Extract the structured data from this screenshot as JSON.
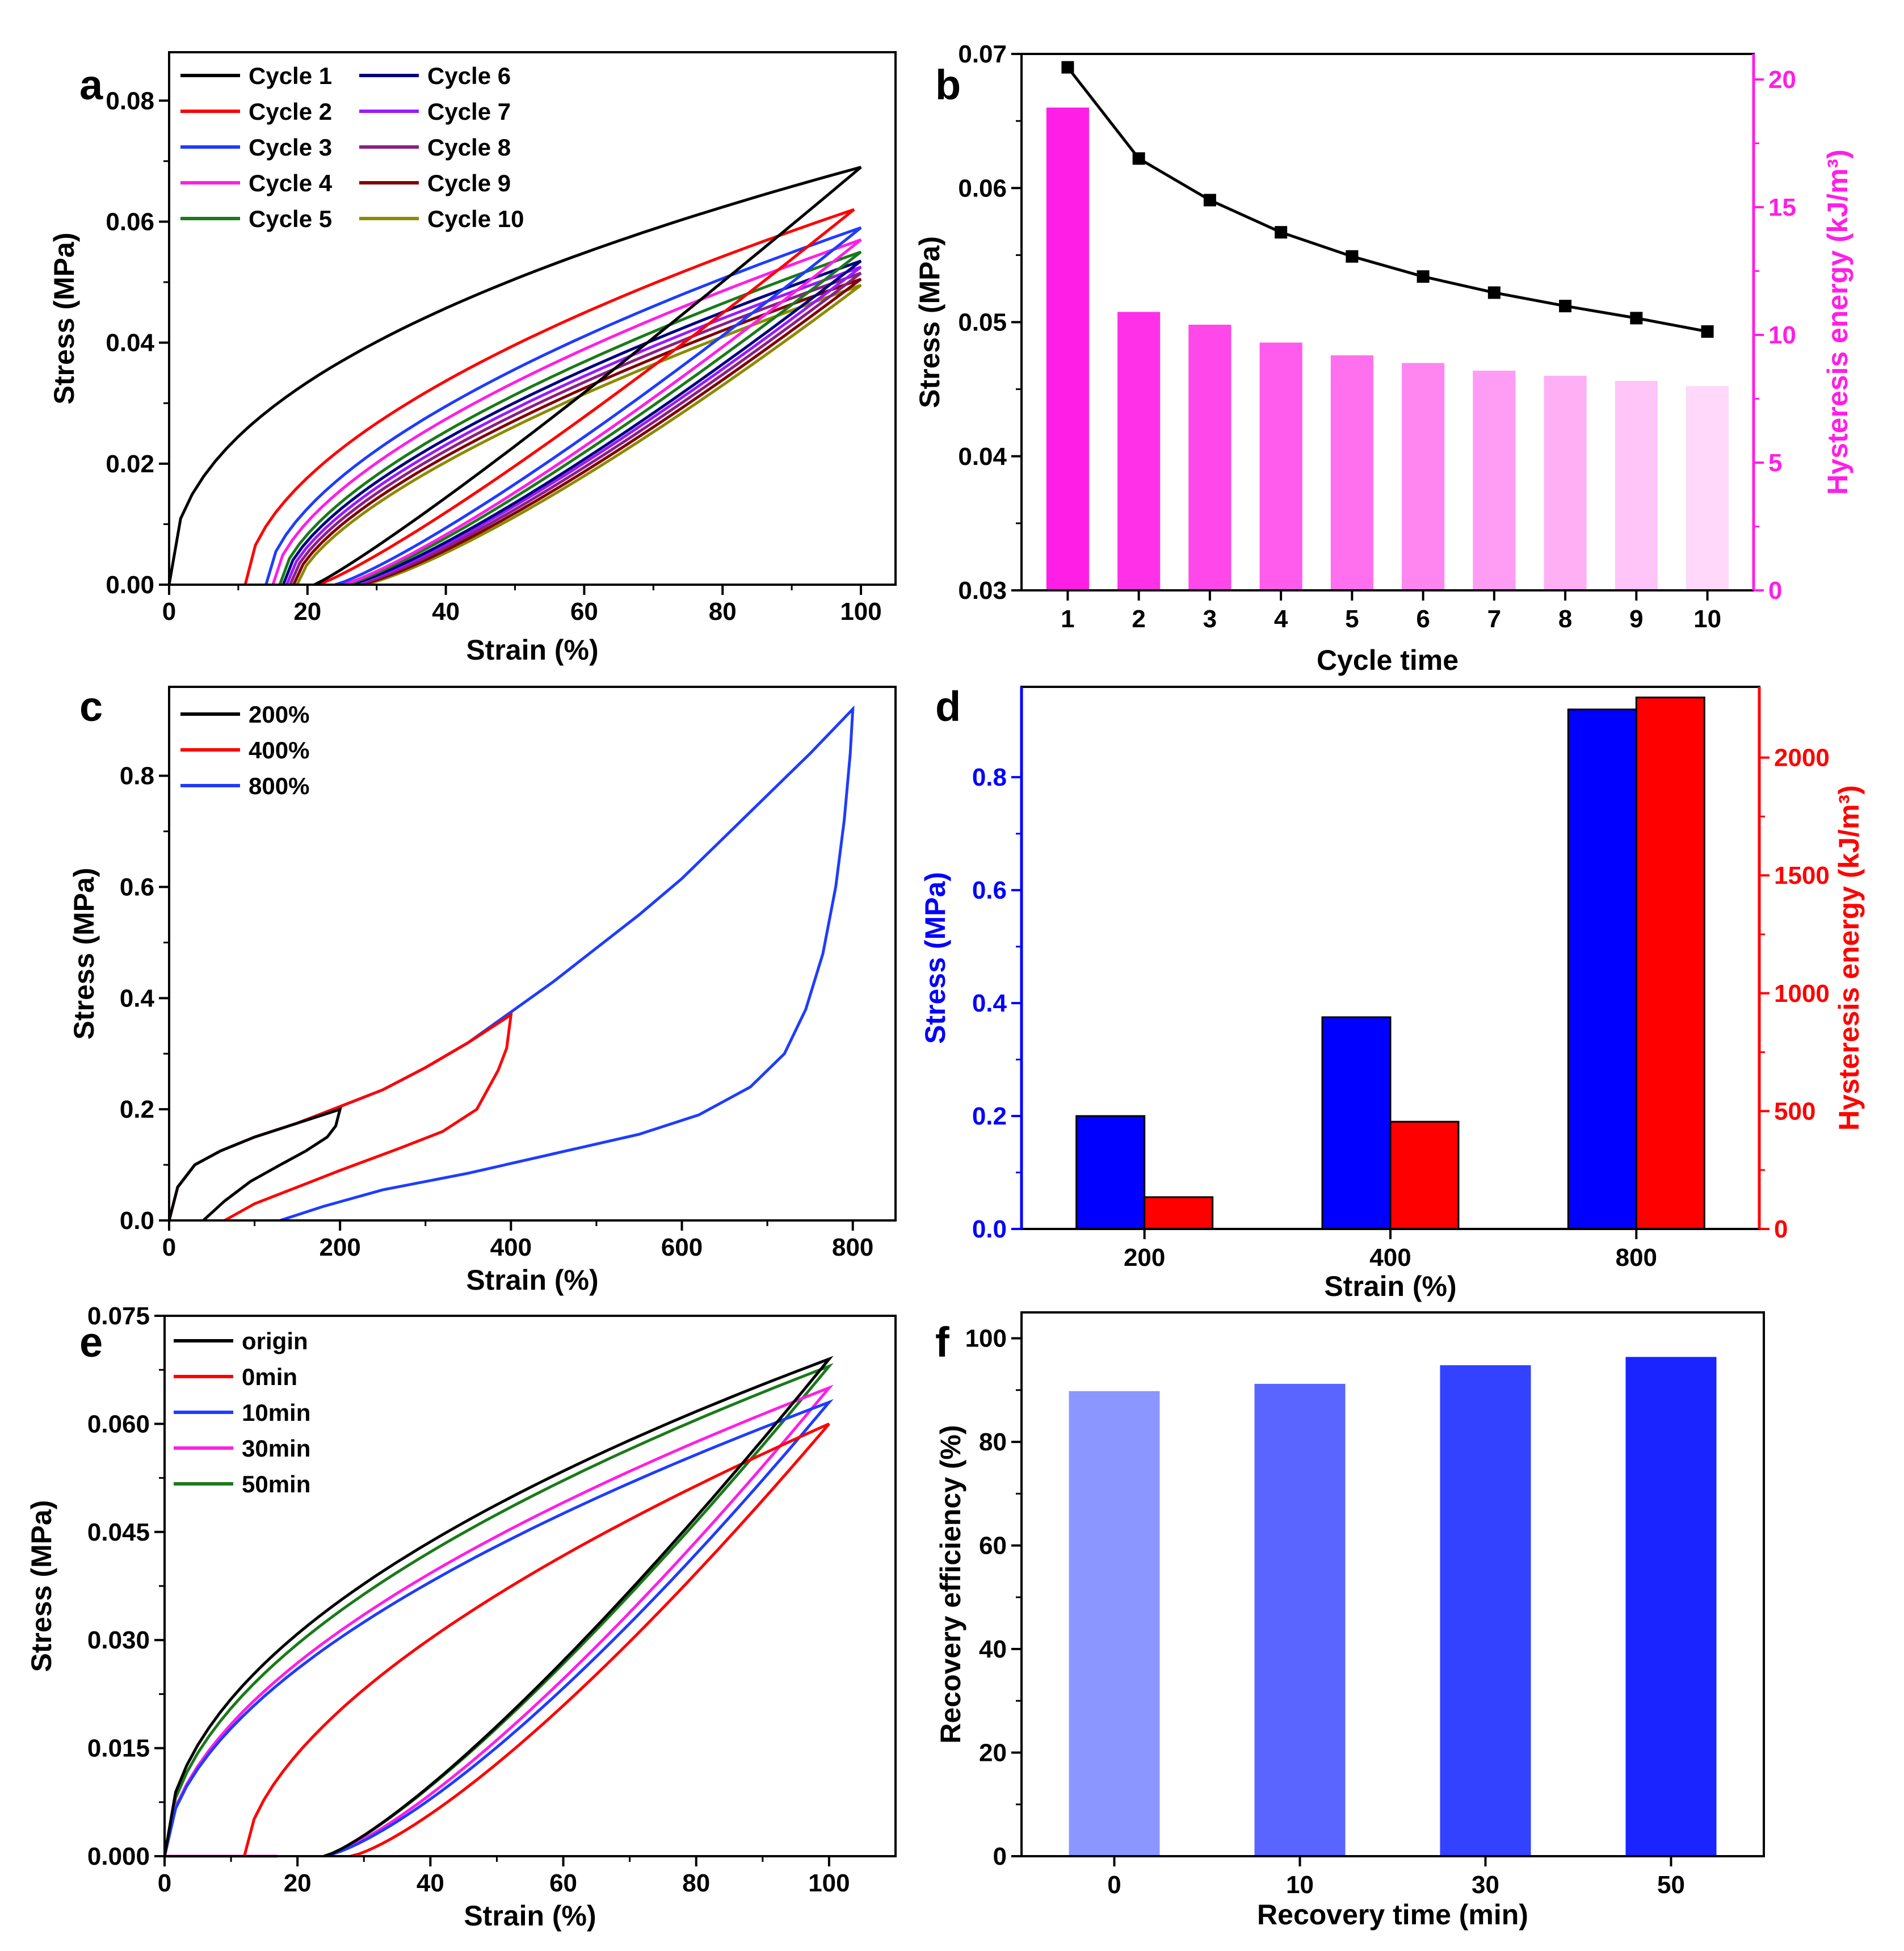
{
  "chart_data": [
    {
      "id": "a",
      "panel_label": "a",
      "type": "line",
      "title": "",
      "xlabel": "Strain (%)",
      "ylabel": "Stress (MPa)",
      "xlim": [
        0,
        105
      ],
      "ylim": [
        0,
        0.088
      ],
      "xticks": [
        0,
        20,
        40,
        60,
        80,
        100
      ],
      "xtick_labels": [
        "0",
        "20",
        "40",
        "60",
        "80",
        "100"
      ],
      "yticks": [
        0,
        0.02,
        0.04,
        0.06,
        0.08
      ],
      "ytick_labels": [
        "0.00",
        "0.02",
        "0.04",
        "0.06",
        "0.08"
      ],
      "legend_position": "top-left",
      "series": [
        {
          "name": "Cycle 1",
          "color": "#000000",
          "loop": {
            "start": 0,
            "peak_strain": 100,
            "peak": 0.069,
            "load_exp": 0.45,
            "residual": 21,
            "unload_exp": 1.1
          }
        },
        {
          "name": "Cycle 2",
          "color": "#ff0000",
          "loop": {
            "start": 11,
            "peak_strain": 99,
            "peak": 0.062,
            "load_exp": 0.55,
            "residual": 21.5,
            "unload_exp": 1.15
          }
        },
        {
          "name": "Cycle 3",
          "color": "#1e3cff",
          "loop": {
            "start": 14,
            "peak_strain": 100,
            "peak": 0.059,
            "load_exp": 0.58,
            "residual": 24,
            "unload_exp": 1.18
          }
        },
        {
          "name": "Cycle 4",
          "color": "#ff1ee6",
          "loop": {
            "start": 15,
            "peak_strain": 100,
            "peak": 0.057,
            "load_exp": 0.6,
            "residual": 25,
            "unload_exp": 1.2
          }
        },
        {
          "name": "Cycle 5",
          "color": "#1a7a1a",
          "loop": {
            "start": 16,
            "peak_strain": 100,
            "peak": 0.055,
            "load_exp": 0.62,
            "residual": 25.5,
            "unload_exp": 1.2
          }
        },
        {
          "name": "Cycle 6",
          "color": "#000080",
          "loop": {
            "start": 16.5,
            "peak_strain": 100,
            "peak": 0.0535,
            "load_exp": 0.63,
            "residual": 26,
            "unload_exp": 1.22
          }
        },
        {
          "name": "Cycle 7",
          "color": "#9a1aff",
          "loop": {
            "start": 17,
            "peak_strain": 100,
            "peak": 0.0525,
            "load_exp": 0.64,
            "residual": 26.5,
            "unload_exp": 1.22
          }
        },
        {
          "name": "Cycle 8",
          "color": "#8b2080",
          "loop": {
            "start": 17.5,
            "peak_strain": 100,
            "peak": 0.0515,
            "load_exp": 0.65,
            "residual": 27,
            "unload_exp": 1.23
          }
        },
        {
          "name": "Cycle 9",
          "color": "#800000",
          "loop": {
            "start": 18,
            "peak_strain": 100,
            "peak": 0.0505,
            "load_exp": 0.66,
            "residual": 27.5,
            "unload_exp": 1.24
          }
        },
        {
          "name": "Cycle 10",
          "color": "#8b8b00",
          "loop": {
            "start": 18.5,
            "peak_strain": 100,
            "peak": 0.0495,
            "load_exp": 0.67,
            "residual": 28,
            "unload_exp": 1.25
          }
        }
      ]
    },
    {
      "id": "b",
      "panel_label": "b",
      "type": "bar+line",
      "title": "",
      "xlabel": "Cycle time",
      "ylabel": "Stress (MPa)",
      "y2label": "Hysteresis energy (kJ/m³)",
      "categories": [
        "1",
        "2",
        "3",
        "4",
        "5",
        "6",
        "7",
        "8",
        "9",
        "10"
      ],
      "ylim": [
        0.03,
        0.07
      ],
      "yticks": [
        0.03,
        0.04,
        0.05,
        0.06,
        0.07
      ],
      "ytick_labels": [
        "0.03",
        "0.04",
        "0.05",
        "0.06",
        "0.07"
      ],
      "y2lim": [
        0,
        21
      ],
      "y2ticks": [
        0,
        5,
        10,
        15,
        20
      ],
      "y2tick_labels": [
        "0",
        "5",
        "10",
        "15",
        "20"
      ],
      "y2_color": "#ff1ee6",
      "line_series": {
        "name": "Stress",
        "color": "#000000",
        "values": [
          0.069,
          0.0622,
          0.0591,
          0.0567,
          0.0549,
          0.0534,
          0.0522,
          0.0512,
          0.0503,
          0.0493
        ]
      },
      "bar_series": {
        "name": "Hysteresis energy",
        "values": [
          18.9,
          10.9,
          10.4,
          9.7,
          9.2,
          8.9,
          8.6,
          8.4,
          8.2,
          8.0
        ],
        "colors": [
          "#ff1ee6",
          "#ff30e8",
          "#ff47ea",
          "#ff5bec",
          "#ff70ee",
          "#ff85f0",
          "#ff9cf3",
          "#ffb0f5",
          "#ffc4f8",
          "#ffd8fa"
        ]
      }
    },
    {
      "id": "c",
      "panel_label": "c",
      "type": "line",
      "title": "",
      "xlabel": "Strain (%)",
      "ylabel": "Stress (MPa)",
      "xlim": [
        0,
        850
      ],
      "ylim": [
        0,
        0.96
      ],
      "xticks": [
        0,
        200,
        400,
        600,
        800
      ],
      "xtick_labels": [
        "0",
        "200",
        "400",
        "600",
        "800"
      ],
      "yticks": [
        0,
        0.2,
        0.4,
        0.6,
        0.8
      ],
      "ytick_labels": [
        "0.0",
        "0.2",
        "0.4",
        "0.6",
        "0.8"
      ],
      "legend_position": "top-left",
      "series": [
        {
          "name": "200%",
          "color": "#000000",
          "load": [
            [
              0,
              0
            ],
            [
              10,
              0.06
            ],
            [
              30,
              0.1
            ],
            [
              60,
              0.125
            ],
            [
              100,
              0.15
            ],
            [
              150,
              0.175
            ],
            [
              200,
              0.2
            ]
          ],
          "unload": [
            [
              200,
              0.2
            ],
            [
              195,
              0.17
            ],
            [
              185,
              0.15
            ],
            [
              160,
              0.125
            ],
            [
              130,
              0.1
            ],
            [
              95,
              0.07
            ],
            [
              65,
              0.035
            ],
            [
              40,
              0
            ]
          ]
        },
        {
          "name": "400%",
          "color": "#ff0000",
          "load": [
            [
              0,
              0
            ],
            [
              10,
              0.06
            ],
            [
              30,
              0.1
            ],
            [
              60,
              0.125
            ],
            [
              100,
              0.15
            ],
            [
              150,
              0.175
            ],
            [
              200,
              0.205
            ],
            [
              250,
              0.235
            ],
            [
              300,
              0.275
            ],
            [
              350,
              0.32
            ],
            [
              400,
              0.37
            ]
          ],
          "unload": [
            [
              400,
              0.37
            ],
            [
              395,
              0.31
            ],
            [
              385,
              0.27
            ],
            [
              360,
              0.2
            ],
            [
              320,
              0.16
            ],
            [
              270,
              0.13
            ],
            [
              200,
              0.09
            ],
            [
              150,
              0.06
            ],
            [
              100,
              0.03
            ],
            [
              65,
              0
            ]
          ]
        },
        {
          "name": "800%",
          "color": "#1e3cff",
          "load": [
            [
              0,
              0
            ],
            [
              10,
              0.06
            ],
            [
              30,
              0.1
            ],
            [
              60,
              0.125
            ],
            [
              100,
              0.15
            ],
            [
              150,
              0.175
            ],
            [
              200,
              0.205
            ],
            [
              250,
              0.235
            ],
            [
              300,
              0.275
            ],
            [
              350,
              0.32
            ],
            [
              400,
              0.375
            ],
            [
              450,
              0.43
            ],
            [
              500,
              0.49
            ],
            [
              550,
              0.55
            ],
            [
              600,
              0.615
            ],
            [
              650,
              0.69
            ],
            [
              700,
              0.765
            ],
            [
              750,
              0.84
            ],
            [
              800,
              0.92
            ]
          ],
          "unload": [
            [
              800,
              0.92
            ],
            [
              797,
              0.84
            ],
            [
              790,
              0.72
            ],
            [
              780,
              0.6
            ],
            [
              765,
              0.48
            ],
            [
              745,
              0.38
            ],
            [
              720,
              0.3
            ],
            [
              680,
              0.24
            ],
            [
              620,
              0.19
            ],
            [
              550,
              0.155
            ],
            [
              450,
              0.12
            ],
            [
              350,
              0.085
            ],
            [
              250,
              0.055
            ],
            [
              180,
              0.025
            ],
            [
              130,
              0
            ]
          ]
        }
      ]
    },
    {
      "id": "d",
      "panel_label": "d",
      "type": "bar",
      "title": "",
      "xlabel": "Strain (%)",
      "ylabel": "Stress (MPa)",
      "y2label": "Hysteresis energy (kJ/m³)",
      "categories": [
        "200",
        "400",
        "800"
      ],
      "ylim": [
        0,
        0.96
      ],
      "yticks": [
        0,
        0.2,
        0.4,
        0.6,
        0.8
      ],
      "ytick_labels": [
        "0.0",
        "0.2",
        "0.4",
        "0.6",
        "0.8"
      ],
      "y2lim": [
        0,
        2300
      ],
      "y2ticks": [
        0,
        500,
        1000,
        1500,
        2000
      ],
      "y2tick_labels": [
        "0",
        "500",
        "1000",
        "1500",
        "2000"
      ],
      "y_color": "#0000ff",
      "y2_color": "#ff0000",
      "series": [
        {
          "name": "Stress",
          "color": "#0000ff",
          "axis": "left",
          "values": [
            0.2,
            0.375,
            0.92
          ]
        },
        {
          "name": "Hysteresis energy",
          "color": "#ff0000",
          "axis": "right",
          "values": [
            135,
            455,
            2255
          ]
        }
      ]
    },
    {
      "id": "e",
      "panel_label": "e",
      "type": "line",
      "title": "",
      "xlabel": "Strain (%)",
      "ylabel": "Stress (MPa)",
      "xlim": [
        0,
        110
      ],
      "ylim": [
        0,
        0.075
      ],
      "xticks": [
        0,
        20,
        40,
        60,
        80,
        100
      ],
      "xtick_labels": [
        "0",
        "20",
        "40",
        "60",
        "80",
        "100"
      ],
      "yticks": [
        0,
        0.015,
        0.03,
        0.045,
        0.06,
        0.075
      ],
      "ytick_labels": [
        "0.000",
        "0.015",
        "0.030",
        "0.045",
        "0.060",
        "0.075"
      ],
      "legend_position": "top-left",
      "series": [
        {
          "name": "origin",
          "color": "#000000",
          "loop": {
            "start": 0,
            "peak_strain": 100,
            "peak": 0.069,
            "load_exp": 0.5,
            "residual": 24,
            "unload_exp": 1.25
          }
        },
        {
          "name": "0min",
          "color": "#ff0000",
          "loop": {
            "start": 12,
            "peak_strain": 100,
            "peak": 0.06,
            "load_exp": 0.6,
            "residual": 28,
            "unload_exp": 1.3
          }
        },
        {
          "name": "10min",
          "color": "#1e3cff",
          "loop": {
            "start": 0,
            "peak_strain": 100,
            "peak": 0.063,
            "load_exp": 0.55,
            "residual": 24,
            "unload_exp": 1.33
          }
        },
        {
          "name": "30min",
          "color": "#ff1ee6",
          "loop": {
            "start": 0,
            "peak_strain": 100,
            "peak": 0.065,
            "load_exp": 0.55,
            "residual": 24,
            "unload_exp": 1.3
          }
        },
        {
          "name": "50min",
          "color": "#1a7a1a",
          "loop": {
            "start": 0,
            "peak_strain": 100,
            "peak": 0.068,
            "load_exp": 0.52,
            "residual": 24,
            "unload_exp": 1.25
          }
        }
      ]
    },
    {
      "id": "f",
      "panel_label": "f",
      "type": "bar",
      "title": "",
      "xlabel": "Recovery time (min)",
      "ylabel": "Recovery efficiency (%)",
      "categories": [
        "0",
        "10",
        "30",
        "50"
      ],
      "ylim": [
        0,
        105
      ],
      "yticks": [
        0,
        20,
        40,
        60,
        80,
        100
      ],
      "ytick_labels": [
        "0",
        "20",
        "40",
        "60",
        "80",
        "100"
      ],
      "series": [
        {
          "name": "Recovery efficiency",
          "values": [
            89.8,
            91.2,
            94.8,
            96.4
          ],
          "colors": [
            "#8c96ff",
            "#5a64ff",
            "#3242ff",
            "#1a24ff"
          ]
        }
      ]
    }
  ]
}
